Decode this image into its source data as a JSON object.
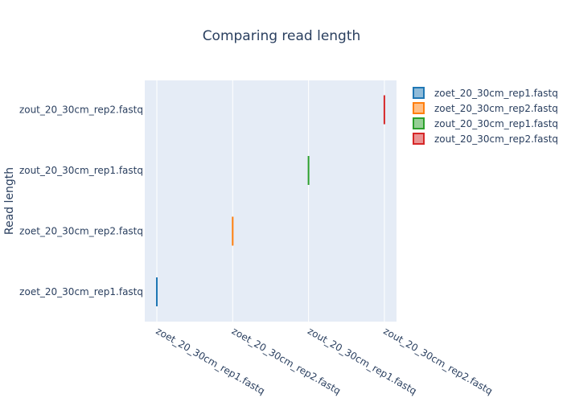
{
  "chart_data": {
    "type": "box",
    "title": "Comparing read length",
    "xlabel": "",
    "ylabel": "Read length",
    "categories": [
      "zoet_20_30cm_rep1.fastq",
      "zoet_20_30cm_rep2.fastq",
      "zout_20_30cm_rep1.fastq",
      "zout_20_30cm_rep2.fastq"
    ],
    "series": [
      {
        "name": "zoet_20_30cm_rep1.fastq",
        "x": "zoet_20_30cm_rep1.fastq",
        "y": "zoet_20_30cm_rep1.fastq",
        "color": "#1f77b4"
      },
      {
        "name": "zoet_20_30cm_rep2.fastq",
        "x": "zoet_20_30cm_rep2.fastq",
        "y": "zoet_20_30cm_rep2.fastq",
        "color": "#ff7f0e"
      },
      {
        "name": "zout_20_30cm_rep1.fastq",
        "x": "zout_20_30cm_rep1.fastq",
        "y": "zout_20_30cm_rep1.fastq",
        "color": "#2ca02c"
      },
      {
        "name": "zout_20_30cm_rep2.fastq",
        "x": "zout_20_30cm_rep2.fastq",
        "y": "zout_20_30cm_rep2.fastq",
        "color": "#d62728"
      }
    ],
    "grid": true,
    "legend": "top-right"
  }
}
